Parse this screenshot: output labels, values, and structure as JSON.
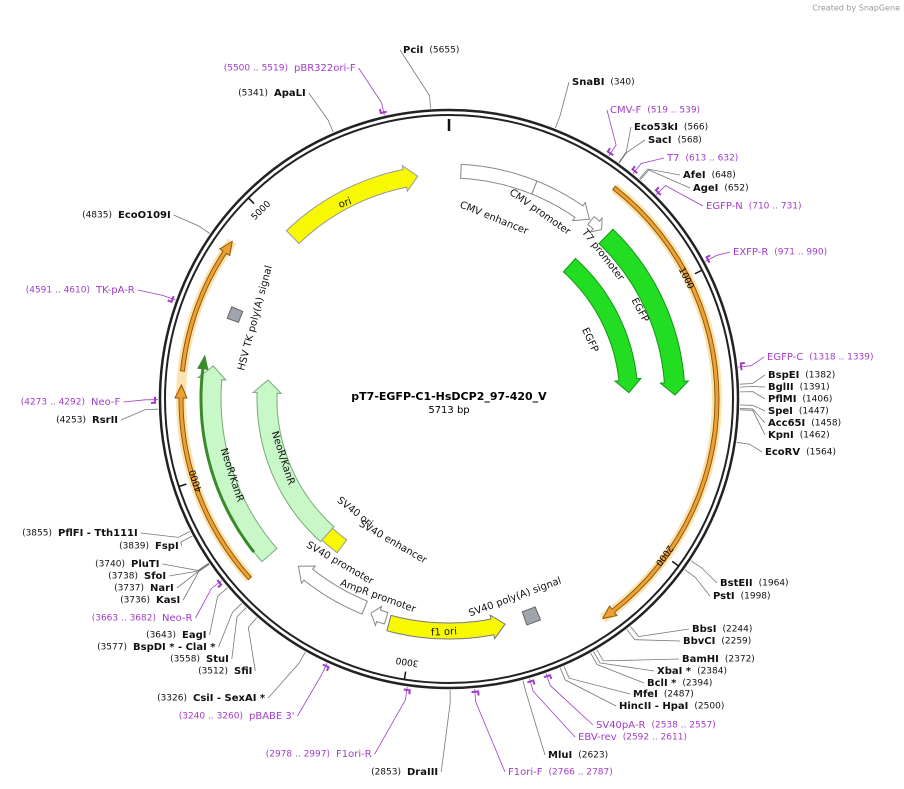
{
  "header": {
    "credit": "Created by SnapGene"
  },
  "map": {
    "title": "pT7-EGFP-C1-HsDCP2_97-420_V",
    "length": {
      "value": 5713,
      "label": "5713 bp"
    },
    "scale_ticks": [
      1000,
      2000,
      3000,
      4000,
      5000
    ],
    "features": [
      "CMV enhancer",
      "CMV promoter",
      "T7 promoter",
      "EGFP",
      "EGFP",
      "ori",
      "HSV TK poly(A) signal",
      "NeoR/KanR",
      "NeoR/KanR",
      "SV40 ori",
      "SV40 enhancer",
      "SV40 promoter",
      "AmpR promoter",
      "f1 ori",
      "SV40 poly(A) signal"
    ],
    "sites": [
      {
        "name": "PciI",
        "position": {
          "value": 5655,
          "label": "(5655)"
        }
      },
      {
        "name": "SnaBI",
        "position": {
          "value": 340,
          "label": "(340)"
        }
      },
      {
        "name": "ApaLI",
        "position": {
          "value": 5341,
          "label": "(5341)"
        }
      },
      {
        "name": "Eco53kI",
        "position": {
          "value": 566,
          "label": "(566)"
        }
      },
      {
        "name": "SacI",
        "position": {
          "value": 568,
          "label": "(568)"
        }
      },
      {
        "name": "AfeI",
        "position": {
          "value": 648,
          "label": "(648)"
        }
      },
      {
        "name": "AgeI",
        "position": {
          "value": 652,
          "label": "(652)"
        }
      },
      {
        "name": "EcoO109I",
        "position": {
          "value": 4835,
          "label": "(4835)"
        }
      },
      {
        "name": "BspEI",
        "position": {
          "value": 1382,
          "label": "(1382)"
        }
      },
      {
        "name": "BglII",
        "position": {
          "value": 1391,
          "label": "(1391)"
        }
      },
      {
        "name": "PflMI",
        "position": {
          "value": 1406,
          "label": "(1406)"
        }
      },
      {
        "name": "SpeI",
        "position": {
          "value": 1447,
          "label": "(1447)"
        }
      },
      {
        "name": "Acc65I",
        "position": {
          "value": 1458,
          "label": "(1458)"
        }
      },
      {
        "name": "KpnI",
        "position": {
          "value": 1462,
          "label": "(1462)"
        }
      },
      {
        "name": "EcoRV",
        "position": {
          "value": 1564,
          "label": "(1564)"
        }
      },
      {
        "name": "RsrII",
        "position": {
          "value": 4253,
          "label": "(4253)"
        }
      },
      {
        "name": "BstEII",
        "position": {
          "value": 1964,
          "label": "(1964)"
        }
      },
      {
        "name": "PstI",
        "position": {
          "value": 1998,
          "label": "(1998)"
        }
      },
      {
        "name": "BbsI",
        "position": {
          "value": 2244,
          "label": "(2244)"
        }
      },
      {
        "name": "BbvCI",
        "position": {
          "value": 2259,
          "label": "(2259)"
        }
      },
      {
        "name": "BamHI",
        "position": {
          "value": 2372,
          "label": "(2372)"
        }
      },
      {
        "name": "XbaI *",
        "position": {
          "value": 2384,
          "label": "(2384)"
        }
      },
      {
        "name": "BclI *",
        "position": {
          "value": 2394,
          "label": "(2394)"
        }
      },
      {
        "name": "MfeI",
        "position": {
          "value": 2487,
          "label": "(2487)"
        }
      },
      {
        "name": "HincII - HpaI",
        "position": {
          "value": 2500,
          "label": "(2500)"
        }
      },
      {
        "name": "MluI",
        "position": {
          "value": 2623,
          "label": "(2623)"
        }
      },
      {
        "name": "DraIII",
        "position": {
          "value": 2853,
          "label": "(2853)"
        }
      },
      {
        "name": "CsiI - SexAI *",
        "position": {
          "value": 3326,
          "label": "(3326)"
        }
      },
      {
        "name": "SfiI",
        "position": {
          "value": 3512,
          "label": "(3512)"
        }
      },
      {
        "name": "StuI",
        "position": {
          "value": 3558,
          "label": "(3558)"
        }
      },
      {
        "name": "BspDI * - ClaI *",
        "position": {
          "value": 3577,
          "label": "(3577)"
        }
      },
      {
        "name": "EagI",
        "position": {
          "value": 3643,
          "label": "(3643)"
        }
      },
      {
        "name": "KasI",
        "position": {
          "value": 3736,
          "label": "(3736)"
        }
      },
      {
        "name": "NarI",
        "position": {
          "value": 3737,
          "label": "(3737)"
        }
      },
      {
        "name": "SfoI",
        "position": {
          "value": 3738,
          "label": "(3738)"
        }
      },
      {
        "name": "PluTI",
        "position": {
          "value": 3740,
          "label": "(3740)"
        }
      },
      {
        "name": "FspI",
        "position": {
          "value": 3839,
          "label": "(3839)"
        }
      },
      {
        "name": "PflFI - Tth111I",
        "position": {
          "value": 3855,
          "label": "(3855)"
        }
      }
    ],
    "primers": [
      {
        "name": "pBR322ori-F",
        "range": {
          "start": 5500,
          "end": 5519,
          "label": "(5500 .. 5519)"
        }
      },
      {
        "name": "CMV-F",
        "range": {
          "start": 519,
          "end": 539,
          "label": "(519 .. 539)"
        }
      },
      {
        "name": "T7",
        "range": {
          "start": 613,
          "end": 632,
          "label": "(613 .. 632)"
        }
      },
      {
        "name": "EGFP-N",
        "range": {
          "start": 710,
          "end": 731,
          "label": "(710 .. 731)"
        }
      },
      {
        "name": "EXFP-R",
        "range": {
          "start": 971,
          "end": 990,
          "label": "(971 .. 990)"
        }
      },
      {
        "name": "EGFP-C",
        "range": {
          "start": 1318,
          "end": 1339,
          "label": "(1318 .. 1339)"
        }
      },
      {
        "name": "TK-pA-R",
        "range": {
          "start": 4591,
          "end": 4610,
          "label": "(4591 .. 4610)"
        }
      },
      {
        "name": "Neo-F",
        "range": {
          "start": 4273,
          "end": 4292,
          "label": "(4273 .. 4292)"
        }
      },
      {
        "name": "Neo-R",
        "range": {
          "start": 3663,
          "end": 3682,
          "label": "(3663 .. 3682)"
        }
      },
      {
        "name": "pBABE 3'",
        "range": {
          "start": 3240,
          "end": 3260,
          "label": "(3240 .. 3260)"
        }
      },
      {
        "name": "F1ori-R",
        "range": {
          "start": 2978,
          "end": 2997,
          "label": "(2978 .. 2997)"
        }
      },
      {
        "name": "F1ori-F",
        "range": {
          "start": 2766,
          "end": 2787,
          "label": "(2766 .. 2787)"
        }
      },
      {
        "name": "EBV-rev",
        "range": {
          "start": 2592,
          "end": 2611,
          "label": "(2592 .. 2611)"
        }
      },
      {
        "name": "SV40pA-R",
        "range": {
          "start": 2538,
          "end": 2557,
          "label": "(2538 .. 2557)"
        }
      }
    ]
  }
}
